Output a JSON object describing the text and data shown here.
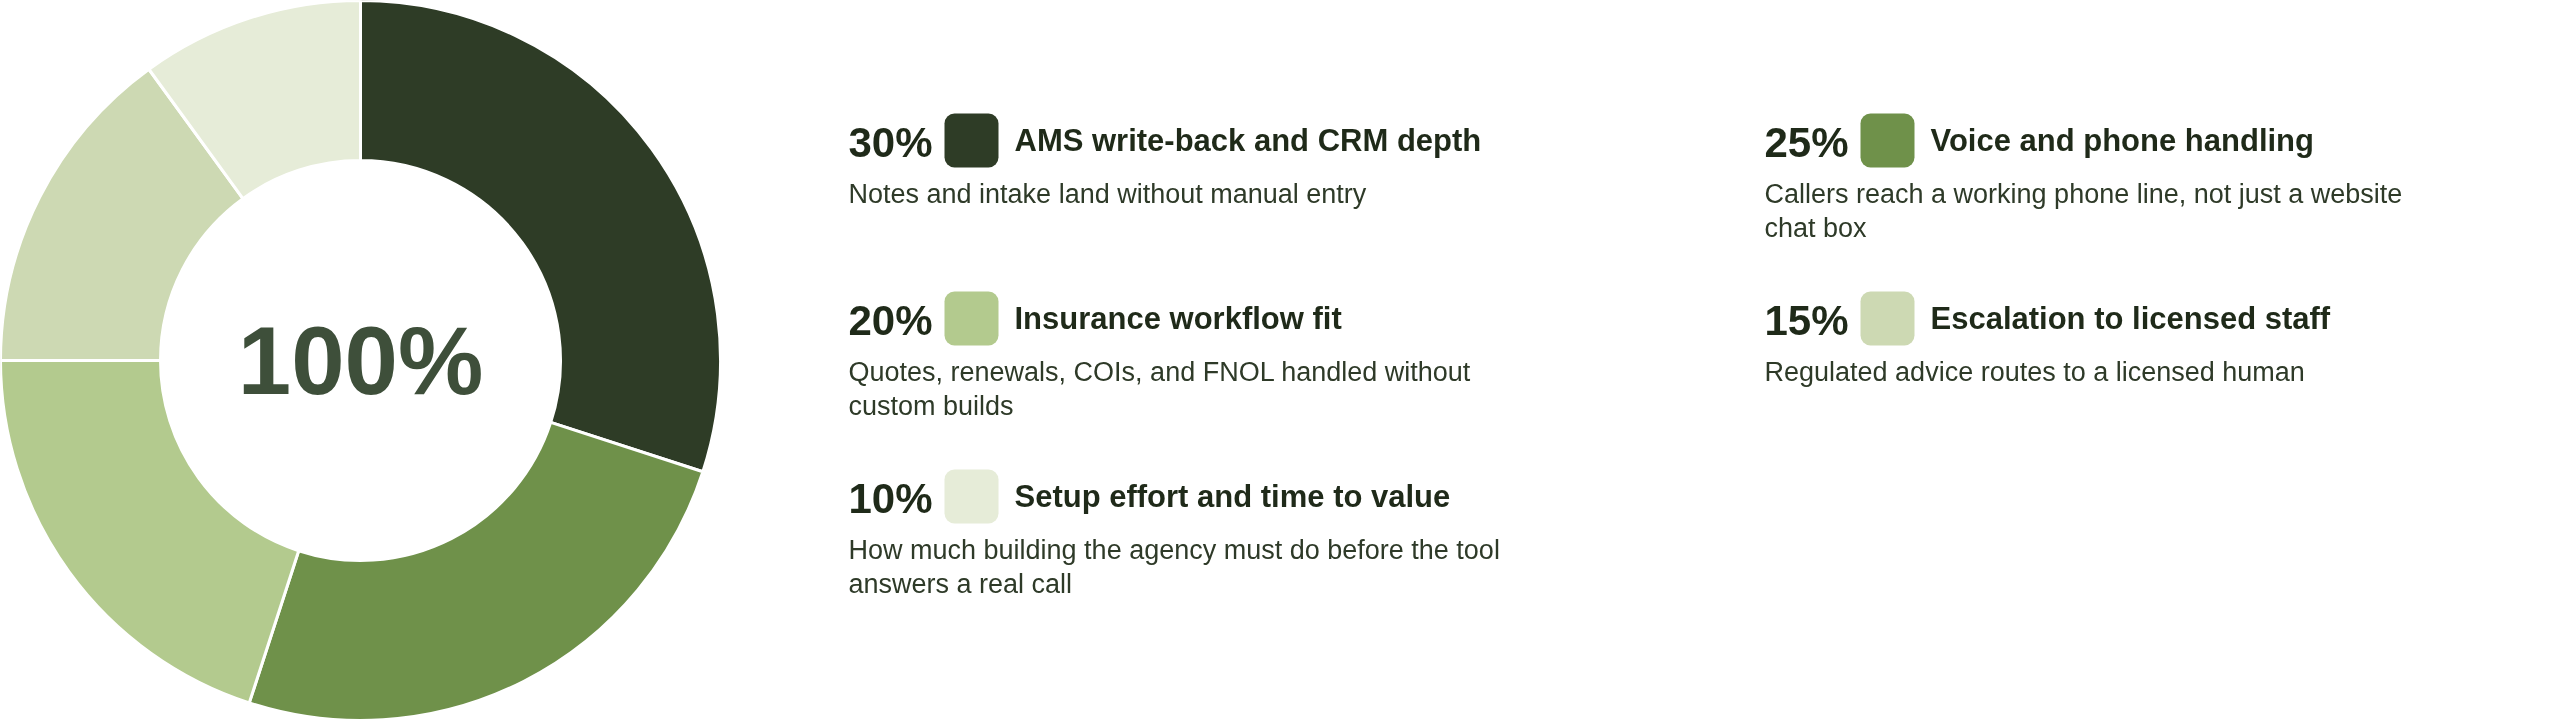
{
  "chart_data": {
    "type": "donut",
    "categories": [
      "AMS write-back and CRM depth",
      "Voice and phone handling",
      "Insurance workflow fit",
      "Escalation to licensed staff",
      "Setup effort and time to value"
    ],
    "values": [
      30,
      25,
      20,
      15,
      10
    ],
    "colors": [
      "#2e3c26",
      "#6f914a",
      "#b3ca8e",
      "#cdd9b3",
      "#e6ecd8"
    ],
    "value_labels": [
      "30%",
      "25%",
      "20%",
      "15%",
      "10%"
    ],
    "totals": [
      "100%"
    ],
    "annotations": [
      "Notes and intake land without manual entry",
      "Callers reach a working phone line, not just a website chat box",
      "Quotes, renewals, COIs, and FNOL handled without custom builds",
      "Regulated advice routes to a licensed human",
      "How much building the agency must do before the tool answers a real call"
    ],
    "legend": "right"
  }
}
